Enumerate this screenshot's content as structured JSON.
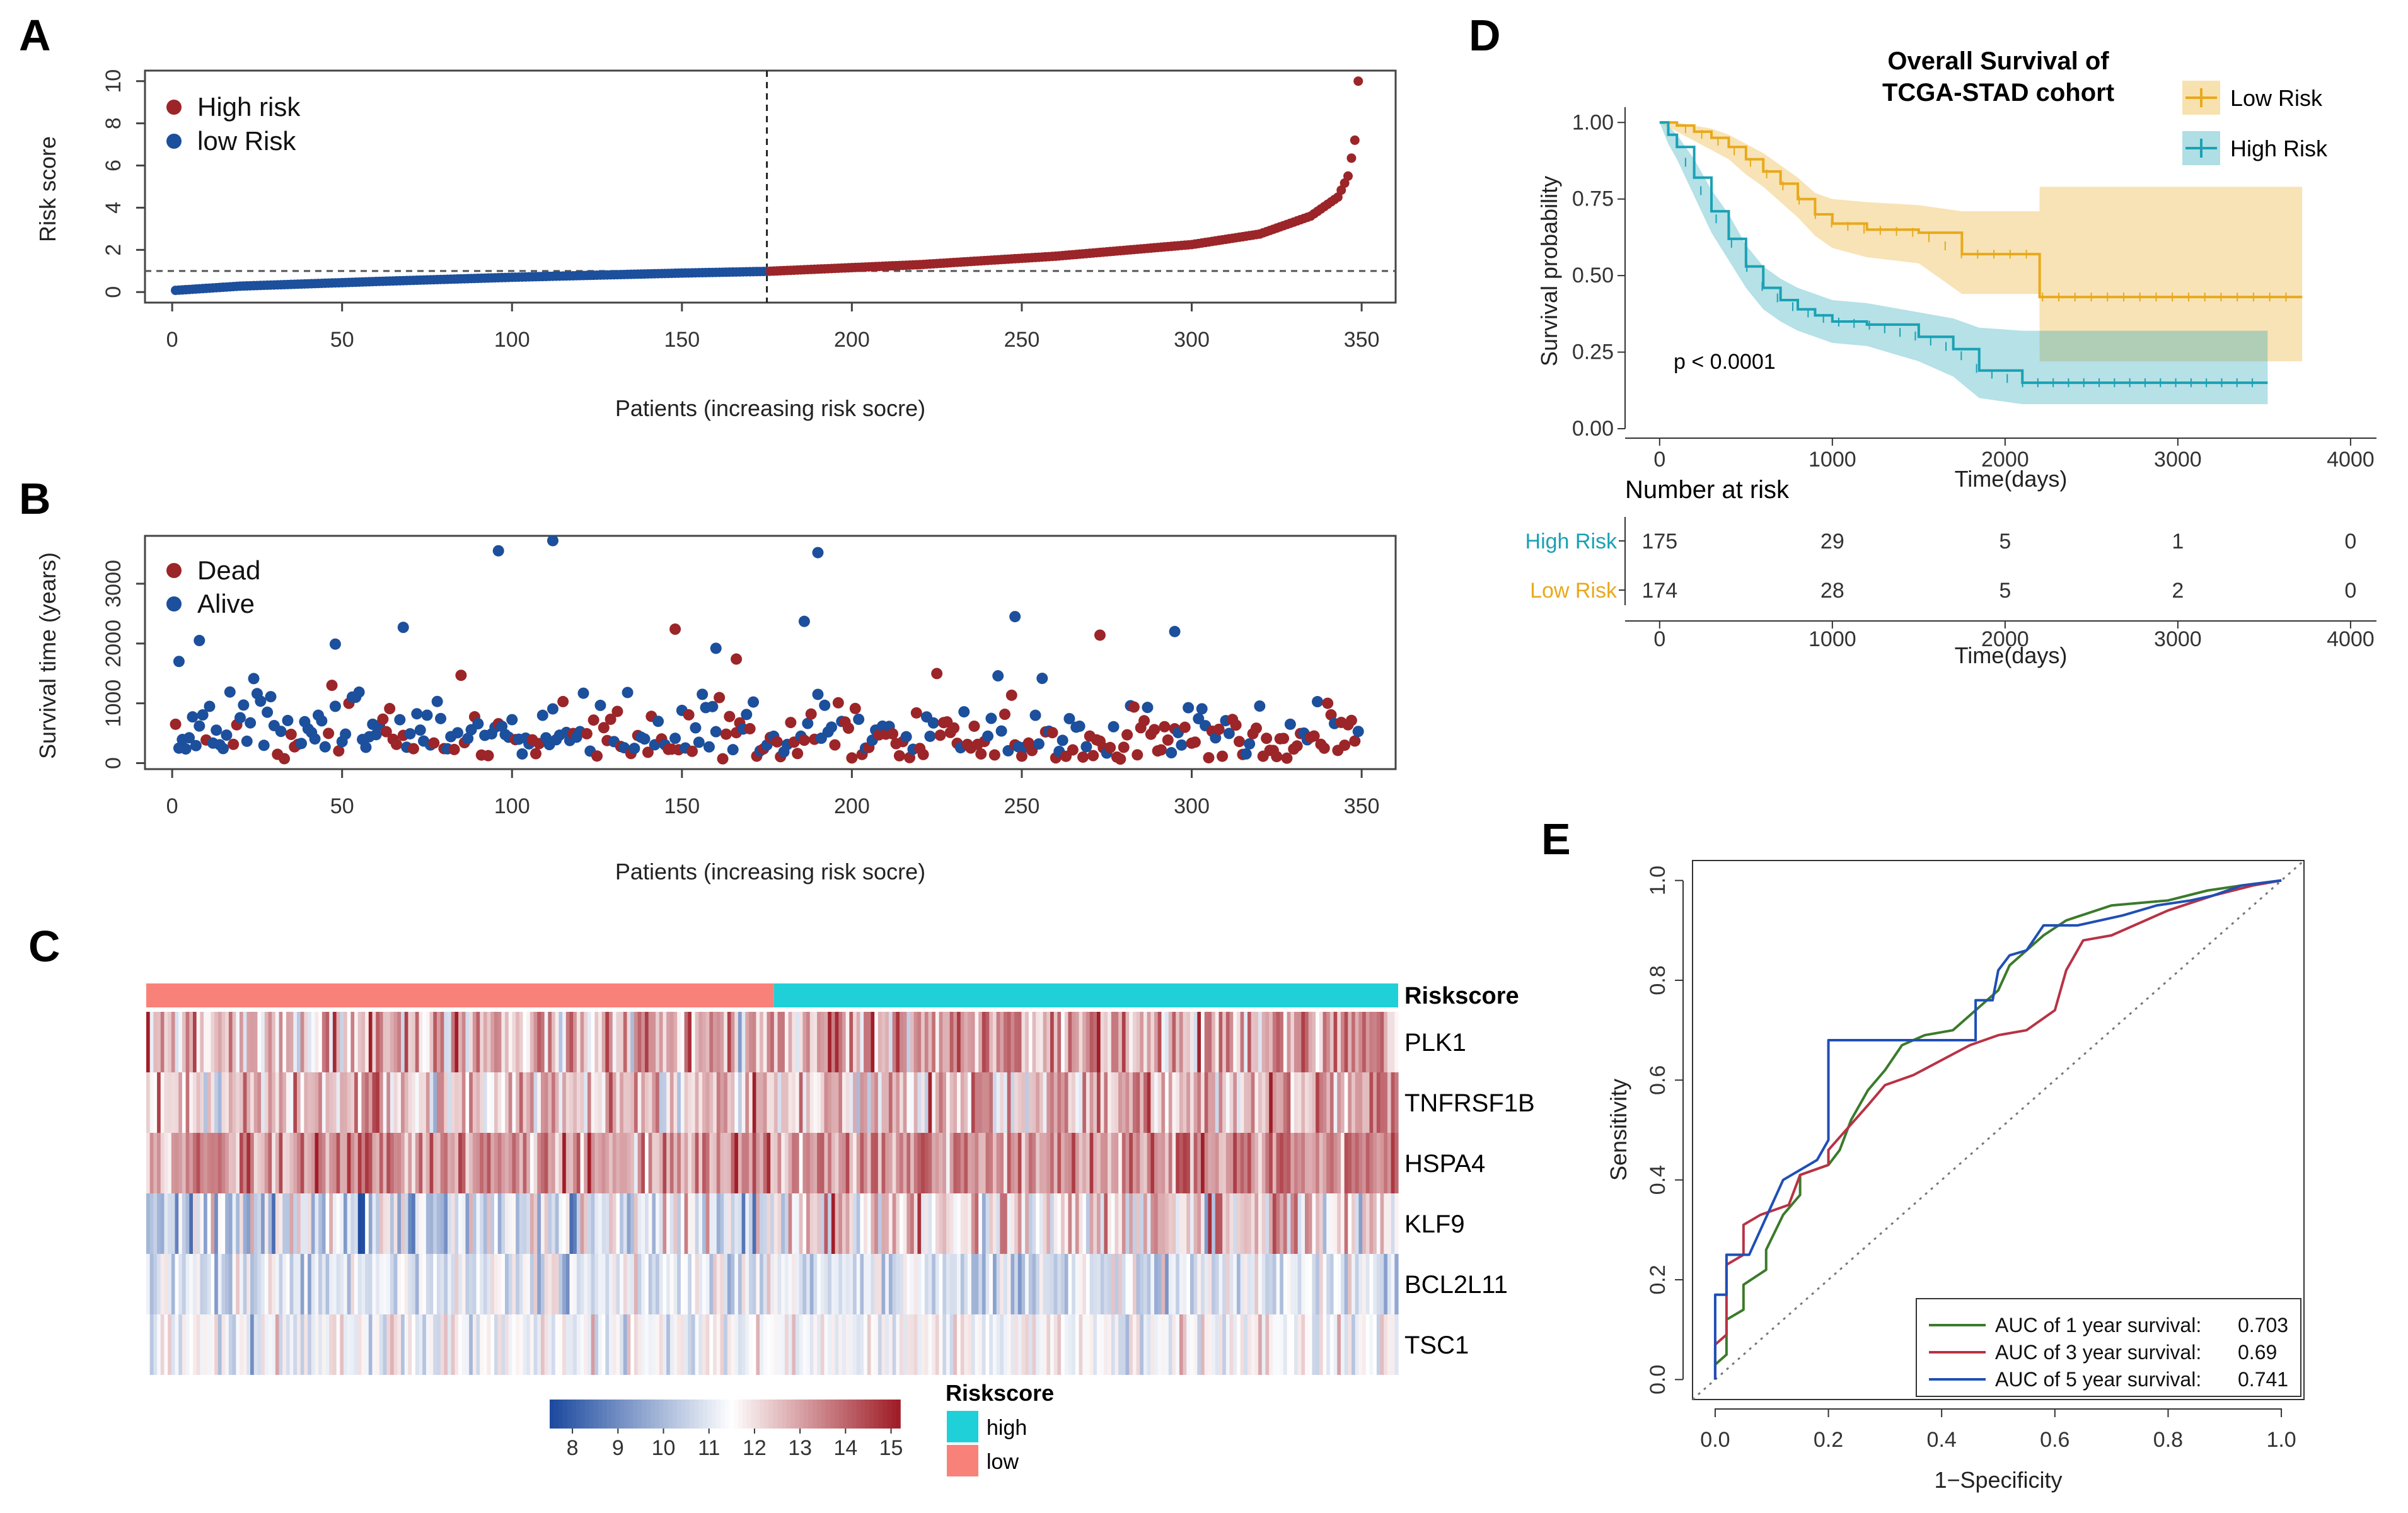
{
  "panels": {
    "A": "A",
    "B": "B",
    "C": "C",
    "D": "D",
    "E": "E"
  },
  "colors": {
    "high": "#9b2528",
    "low": "#1c4f9c",
    "bar_high": "#f8827a",
    "bar_low": "#20d0d8",
    "km_low": "#e8a91b",
    "km_high": "#1aa1b4",
    "roc1": "#3b7a2a",
    "roc3": "#b83245",
    "roc5": "#1f4fb6"
  },
  "chart_data": [
    {
      "id": "A",
      "type": "scatter",
      "xlabel": "Patients (increasing risk socre)",
      "ylabel": "Risk score",
      "xticks": [
        "0",
        "50",
        "100",
        "150",
        "200",
        "250",
        "300",
        "350"
      ],
      "yticks": [
        "0",
        "2",
        "4",
        "6",
        "8",
        "10"
      ],
      "xlim": [
        -8,
        360
      ],
      "ylim": [
        -0.5,
        10.5
      ],
      "cutoff_index": 175,
      "cutoff_value": 1,
      "n": 349,
      "anchors_x": [
        1,
        20,
        60,
        100,
        150,
        175,
        220,
        260,
        300,
        320,
        335,
        343,
        346,
        348,
        349
      ],
      "anchors_y": [
        0.08,
        0.28,
        0.5,
        0.7,
        0.9,
        0.98,
        1.3,
        1.7,
        2.25,
        2.75,
        3.6,
        4.5,
        5.5,
        7.2,
        10.0
      ],
      "legend": [
        {
          "label": "High risk",
          "key": "high"
        },
        {
          "label": "low Risk",
          "key": "low"
        }
      ]
    },
    {
      "id": "B",
      "type": "scatter",
      "xlabel": "Patients (increasing risk socre)",
      "ylabel": "Survival time (years)",
      "xticks": [
        "0",
        "50",
        "100",
        "150",
        "200",
        "250",
        "300",
        "350"
      ],
      "yticks": [
        "0",
        "1000",
        "2000",
        "3000"
      ],
      "xlim": [
        -8,
        360
      ],
      "ylim": [
        -100,
        3800
      ],
      "outliers": [
        {
          "x": 96,
          "y": 3550,
          "s": "alive"
        },
        {
          "x": 112,
          "y": 3720,
          "s": "alive"
        },
        {
          "x": 190,
          "y": 3520,
          "s": "alive"
        },
        {
          "x": 68,
          "y": 2270,
          "s": "alive"
        },
        {
          "x": 48,
          "y": 1990,
          "s": "alive"
        },
        {
          "x": 186,
          "y": 2370,
          "s": "alive"
        },
        {
          "x": 248,
          "y": 2450,
          "s": "alive"
        },
        {
          "x": 295,
          "y": 2200,
          "s": "alive"
        },
        {
          "x": 148,
          "y": 2240,
          "s": "dead"
        },
        {
          "x": 273,
          "y": 2140,
          "s": "dead"
        },
        {
          "x": 8,
          "y": 2050,
          "s": "alive"
        },
        {
          "x": 2,
          "y": 1700,
          "s": "alive"
        },
        {
          "x": 160,
          "y": 1920,
          "s": "alive"
        },
        {
          "x": 166,
          "y": 1740,
          "s": "dead"
        }
      ],
      "legend": [
        {
          "label": "Dead",
          "key": "dead"
        },
        {
          "label": "Alive",
          "key": "alive"
        }
      ]
    },
    {
      "id": "C",
      "type": "heatmap",
      "genes": [
        "PLK1",
        "TNFRSF1B",
        "HSPA4",
        "KLF9",
        "BCL2L11",
        "TSC1"
      ],
      "gene_mean_low": [
        12.6,
        12.4,
        13.2,
        10.9,
        11.1,
        11.3
      ],
      "gene_mean_high": [
        12.9,
        12.6,
        13.3,
        12.2,
        10.9,
        11.4
      ],
      "gene_sd": [
        1.1,
        1.0,
        0.8,
        1.2,
        0.7,
        0.6
      ],
      "bar_label": "Riskscore",
      "colorbar_ticks": [
        "8",
        "9",
        "10",
        "11",
        "12",
        "13",
        "14",
        "15"
      ],
      "colorbar_range": [
        7.5,
        15.2
      ],
      "legend_title": "Riskscore",
      "legend": [
        {
          "label": "high",
          "key": "bar_low"
        },
        {
          "label": "low",
          "key": "bar_high"
        }
      ]
    },
    {
      "id": "D",
      "type": "line",
      "title": [
        "Overall Survival of",
        "TCGA-STAD cohort"
      ],
      "xlabel": "Time(days)",
      "ylabel": "Survival probability",
      "xticks": [
        "0",
        "1000",
        "2000",
        "3000",
        "4000"
      ],
      "yticks": [
        "0.00",
        "0.25",
        "0.50",
        "0.75",
        "1.00"
      ],
      "xlim": [
        -200,
        4150
      ],
      "ylim": [
        0,
        1.05
      ],
      "pvalue": "p < 0.0001",
      "series": [
        {
          "name": "Low Risk",
          "key": "km_low",
          "x": [
            0,
            100,
            200,
            300,
            400,
            500,
            600,
            700,
            800,
            900,
            1000,
            1200,
            1500,
            1750,
            2199,
            2200,
            3720
          ],
          "y": [
            1.0,
            0.99,
            0.97,
            0.95,
            0.92,
            0.88,
            0.84,
            0.8,
            0.75,
            0.7,
            0.67,
            0.65,
            0.64,
            0.57,
            0.57,
            0.43,
            0.43
          ],
          "lower": [
            1.0,
            0.97,
            0.94,
            0.91,
            0.88,
            0.83,
            0.79,
            0.74,
            0.69,
            0.63,
            0.59,
            0.56,
            0.54,
            0.44,
            0.44,
            0.22,
            0.22
          ],
          "upper": [
            1.0,
            1.0,
            0.99,
            0.98,
            0.96,
            0.93,
            0.9,
            0.86,
            0.82,
            0.77,
            0.75,
            0.74,
            0.73,
            0.71,
            0.71,
            0.79,
            0.79
          ]
        },
        {
          "name": "High Risk",
          "key": "km_high",
          "x": [
            0,
            50,
            100,
            200,
            300,
            400,
            500,
            600,
            700,
            800,
            900,
            1000,
            1200,
            1500,
            1700,
            1850,
            2100,
            3520
          ],
          "y": [
            1.0,
            0.96,
            0.92,
            0.82,
            0.71,
            0.62,
            0.53,
            0.46,
            0.42,
            0.39,
            0.37,
            0.35,
            0.34,
            0.3,
            0.26,
            0.19,
            0.15,
            0.15
          ],
          "lower": [
            1.0,
            0.93,
            0.88,
            0.76,
            0.64,
            0.55,
            0.46,
            0.39,
            0.35,
            0.32,
            0.3,
            0.28,
            0.27,
            0.22,
            0.17,
            0.1,
            0.08,
            0.08
          ],
          "upper": [
            1.0,
            0.99,
            0.96,
            0.88,
            0.78,
            0.7,
            0.6,
            0.53,
            0.49,
            0.46,
            0.44,
            0.42,
            0.41,
            0.38,
            0.36,
            0.33,
            0.32,
            0.32
          ]
        }
      ]
    },
    {
      "id": "D-risk-table",
      "type": "table",
      "title": "Number at risk",
      "xlabel": "Time(days)",
      "xticks": [
        "0",
        "1000",
        "2000",
        "3000",
        "4000"
      ],
      "rows": [
        {
          "name": "High Risk",
          "key": "km_high",
          "values": [
            "175",
            "29",
            "5",
            "1",
            "0"
          ]
        },
        {
          "name": "Low Risk",
          "key": "km_low",
          "values": [
            "174",
            "28",
            "5",
            "2",
            "0"
          ]
        }
      ]
    },
    {
      "id": "E",
      "type": "line",
      "xlabel": "1−Specificity",
      "ylabel": "Sensitivity",
      "xticks": [
        "0.0",
        "0.2",
        "0.4",
        "0.6",
        "0.8",
        "1.0"
      ],
      "yticks": [
        "0.0",
        "0.2",
        "0.4",
        "0.6",
        "0.8",
        "1.0"
      ],
      "xlim": [
        -0.04,
        1.04
      ],
      "ylim": [
        -0.04,
        1.04
      ],
      "series": [
        {
          "name": "AUC of 1 year survival:",
          "auc": "0.703",
          "key": "roc1",
          "x": [
            0,
            0,
            0.02,
            0.02,
            0.05,
            0.05,
            0.09,
            0.09,
            0.12,
            0.15,
            0.15,
            0.2,
            0.22,
            0.24,
            0.27,
            0.3,
            0.33,
            0.37,
            0.42,
            0.46,
            0.5,
            0.52,
            0.55,
            0.58,
            0.62,
            0.7,
            0.8,
            0.87,
            0.93,
            1.0
          ],
          "y": [
            0,
            0.03,
            0.05,
            0.12,
            0.14,
            0.19,
            0.22,
            0.26,
            0.33,
            0.37,
            0.41,
            0.43,
            0.46,
            0.52,
            0.58,
            0.62,
            0.67,
            0.69,
            0.7,
            0.74,
            0.78,
            0.83,
            0.86,
            0.89,
            0.92,
            0.95,
            0.96,
            0.98,
            0.99,
            1.0
          ]
        },
        {
          "name": "AUC of 3 year survival:",
          "auc": "0.69",
          "key": "roc3",
          "x": [
            0,
            0,
            0.02,
            0.02,
            0.05,
            0.05,
            0.08,
            0.08,
            0.13,
            0.15,
            0.2,
            0.2,
            0.27,
            0.3,
            0.35,
            0.4,
            0.45,
            0.5,
            0.55,
            0.6,
            0.62,
            0.65,
            0.7,
            0.8,
            0.88,
            0.95,
            1.0
          ],
          "y": [
            0,
            0.07,
            0.09,
            0.23,
            0.25,
            0.31,
            0.33,
            0.33,
            0.35,
            0.41,
            0.43,
            0.46,
            0.55,
            0.59,
            0.61,
            0.64,
            0.67,
            0.69,
            0.7,
            0.74,
            0.82,
            0.88,
            0.89,
            0.94,
            0.97,
            0.99,
            1.0
          ]
        },
        {
          "name": "AUC of 5 year survival:",
          "auc": "0.741",
          "key": "roc5",
          "x": [
            0,
            0,
            0.02,
            0.02,
            0.06,
            0.1,
            0.12,
            0.18,
            0.2,
            0.2,
            0.26,
            0.34,
            0.42,
            0.46,
            0.46,
            0.49,
            0.5,
            0.52,
            0.55,
            0.58,
            0.64,
            0.72,
            0.78,
            0.84,
            0.88,
            0.93,
            1.0
          ],
          "y": [
            0,
            0.17,
            0.17,
            0.25,
            0.25,
            0.35,
            0.4,
            0.44,
            0.48,
            0.68,
            0.68,
            0.68,
            0.68,
            0.68,
            0.76,
            0.76,
            0.82,
            0.85,
            0.86,
            0.91,
            0.91,
            0.93,
            0.95,
            0.96,
            0.97,
            0.99,
            1.0
          ]
        }
      ]
    }
  ]
}
